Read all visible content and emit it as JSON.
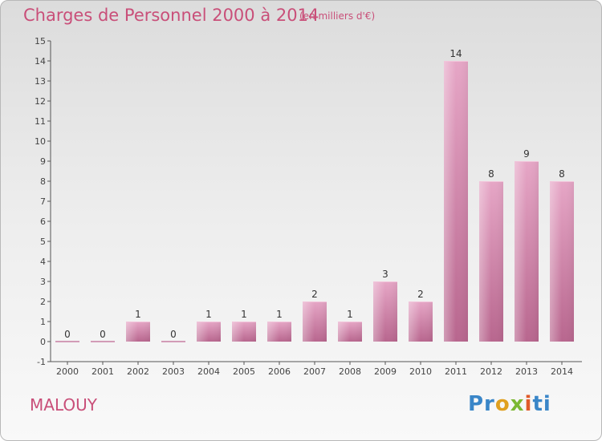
{
  "header": {
    "title": "Charges de Personnel 2000 à 2014",
    "subtitle": "(en milliers d'€)"
  },
  "footer": {
    "commune": "MALOUY",
    "logo_letters": [
      "Pr",
      "o",
      "x",
      "i",
      "ti"
    ]
  },
  "chart_data": {
    "type": "bar",
    "categories": [
      "2000",
      "2001",
      "2002",
      "2003",
      "2004",
      "2005",
      "2006",
      "2007",
      "2008",
      "2009",
      "2010",
      "2011",
      "2012",
      "2013",
      "2014"
    ],
    "values": [
      0,
      0,
      1,
      0,
      1,
      1,
      1,
      2,
      1,
      3,
      2,
      14,
      8,
      9,
      8
    ],
    "data_labels": [
      "0",
      "0",
      "1",
      "0",
      "1",
      "1",
      "1",
      "2",
      "1",
      "3",
      "2",
      "14",
      "8",
      "9",
      "8"
    ],
    "ylim": [
      -1,
      15
    ],
    "yticks": [
      "-1",
      "0",
      "1",
      "2",
      "3",
      "4",
      "5",
      "6",
      "7",
      "8",
      "9",
      "10",
      "11",
      "12",
      "13",
      "14",
      "15"
    ],
    "grid": false,
    "bar_color": "#d98aad"
  }
}
